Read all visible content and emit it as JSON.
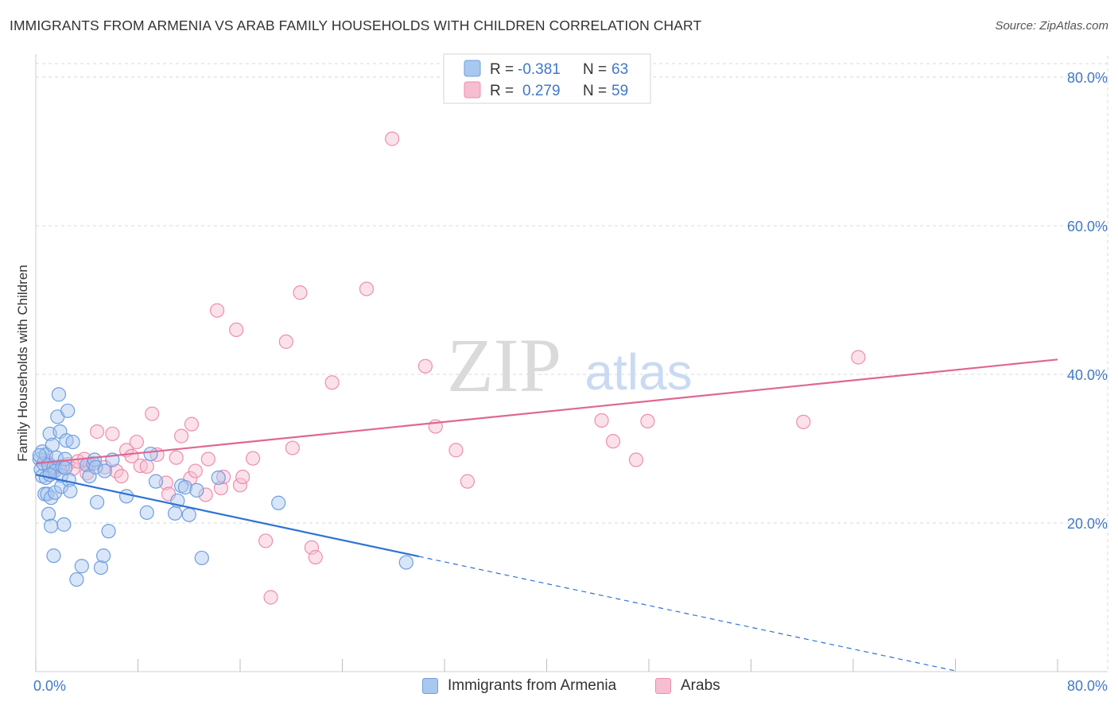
{
  "title": "IMMIGRANTS FROM ARMENIA VS ARAB FAMILY HOUSEHOLDS WITH CHILDREN CORRELATION CHART",
  "source": "Source: ZipAtlas.com",
  "watermark": {
    "zip": "ZIP",
    "atlas": "atlas"
  },
  "colors": {
    "blue_fill": "#a9c8f0",
    "blue_stroke": "#6f9ee0",
    "blue_line": "#2f72d3",
    "pink_fill": "#f7bdd0",
    "pink_stroke": "#ec8fae",
    "pink_line": "#e06793",
    "axis_label": "#3f78c9",
    "grid": "#d9d9d9"
  },
  "legend_top": {
    "rows": [
      {
        "r_label": "R =",
        "r_value": "-0.381",
        "n_label": "N =",
        "n_value": "63"
      },
      {
        "r_label": "R =",
        "r_value": "0.279",
        "n_label": "N =",
        "n_value": "59"
      }
    ]
  },
  "legend_bottom": [
    "Immigrants from Armenia",
    "Arabs"
  ],
  "chart_data": {
    "type": "scatter",
    "title": "IMMIGRANTS FROM ARMENIA VS ARAB FAMILY HOUSEHOLDS WITH CHILDREN CORRELATION CHART",
    "xlabel": "",
    "ylabel": "Family Households with Children",
    "xlim": [
      0,
      80
    ],
    "ylim": [
      0,
      80
    ],
    "x_tick_labels": [
      "0.0%",
      "80.0%"
    ],
    "y_tick_labels": [
      "20.0%",
      "40.0%",
      "60.0%",
      "80.0%"
    ],
    "y_ticks": [
      20,
      40,
      60,
      80
    ],
    "grid": true,
    "series": [
      {
        "name": "Immigrants from Armenia",
        "r": -0.381,
        "n": 63,
        "trend": {
          "x0": 0,
          "y0": 26.5,
          "x1": 30,
          "y1": 15.5,
          "dash_to_x": 72
        },
        "points": [
          [
            0.3,
            28.6
          ],
          [
            0.4,
            27.2
          ],
          [
            0.5,
            29.6
          ],
          [
            0.5,
            26.3
          ],
          [
            0.6,
            28.0
          ],
          [
            0.7,
            23.9
          ],
          [
            0.8,
            29.2
          ],
          [
            0.8,
            26.1
          ],
          [
            0.9,
            23.9
          ],
          [
            1.0,
            27.8
          ],
          [
            1.0,
            21.2
          ],
          [
            1.1,
            32.0
          ],
          [
            1.2,
            23.4
          ],
          [
            1.2,
            19.6
          ],
          [
            1.3,
            30.5
          ],
          [
            1.4,
            27.5
          ],
          [
            1.4,
            15.6
          ],
          [
            1.5,
            27.0
          ],
          [
            1.5,
            24.1
          ],
          [
            1.6,
            28.8
          ],
          [
            1.7,
            34.3
          ],
          [
            1.8,
            37.3
          ],
          [
            1.9,
            32.3
          ],
          [
            2.0,
            24.9
          ],
          [
            2.0,
            26.4
          ],
          [
            2.1,
            27.6
          ],
          [
            2.2,
            19.8
          ],
          [
            2.3,
            28.6
          ],
          [
            2.4,
            31.1
          ],
          [
            2.5,
            35.1
          ],
          [
            2.6,
            25.8
          ],
          [
            2.7,
            24.3
          ],
          [
            2.9,
            30.9
          ],
          [
            3.2,
            12.4
          ],
          [
            3.6,
            14.2
          ],
          [
            4.0,
            27.8
          ],
          [
            4.2,
            26.3
          ],
          [
            4.5,
            28.0
          ],
          [
            4.6,
            28.5
          ],
          [
            4.7,
            27.5
          ],
          [
            4.8,
            22.8
          ],
          [
            5.1,
            14.0
          ],
          [
            5.3,
            15.6
          ],
          [
            5.4,
            27.0
          ],
          [
            5.7,
            18.9
          ],
          [
            6.0,
            28.5
          ],
          [
            7.1,
            23.6
          ],
          [
            8.7,
            21.4
          ],
          [
            9.0,
            29.3
          ],
          [
            9.4,
            25.6
          ],
          [
            10.9,
            21.3
          ],
          [
            11.1,
            23.0
          ],
          [
            11.4,
            25.0
          ],
          [
            11.7,
            24.8
          ],
          [
            12.0,
            21.1
          ],
          [
            12.6,
            24.4
          ],
          [
            13.0,
            15.3
          ],
          [
            14.3,
            26.1
          ],
          [
            19.0,
            22.7
          ],
          [
            29.0,
            14.7
          ],
          [
            0.3,
            29.1
          ],
          [
            1.1,
            26.5
          ],
          [
            2.3,
            27.4
          ]
        ]
      },
      {
        "name": "Arabs",
        "r": 0.279,
        "n": 59,
        "trend": {
          "x0": 0,
          "y0": 28.0,
          "x1": 80,
          "y1": 42.0
        },
        "points": [
          [
            0.7,
            28.5
          ],
          [
            1.0,
            28.0
          ],
          [
            1.3,
            26.8
          ],
          [
            1.8,
            27.6
          ],
          [
            2.5,
            27.9
          ],
          [
            2.9,
            27.3
          ],
          [
            3.3,
            28.3
          ],
          [
            4.0,
            26.7
          ],
          [
            4.2,
            27.9
          ],
          [
            4.8,
            32.3
          ],
          [
            5.4,
            27.5
          ],
          [
            6.0,
            32.0
          ],
          [
            6.3,
            27.0
          ],
          [
            6.7,
            26.3
          ],
          [
            7.1,
            29.8
          ],
          [
            7.5,
            29.0
          ],
          [
            7.9,
            30.9
          ],
          [
            8.2,
            27.7
          ],
          [
            8.7,
            27.6
          ],
          [
            9.1,
            34.7
          ],
          [
            9.5,
            29.2
          ],
          [
            10.2,
            25.4
          ],
          [
            10.4,
            23.9
          ],
          [
            11.0,
            28.8
          ],
          [
            11.4,
            31.7
          ],
          [
            12.1,
            26.0
          ],
          [
            12.2,
            33.3
          ],
          [
            12.5,
            27.0
          ],
          [
            13.3,
            23.8
          ],
          [
            13.5,
            28.6
          ],
          [
            14.2,
            48.6
          ],
          [
            14.5,
            24.7
          ],
          [
            14.7,
            26.2
          ],
          [
            15.7,
            46.0
          ],
          [
            16.0,
            25.1
          ],
          [
            16.2,
            26.2
          ],
          [
            17.0,
            28.7
          ],
          [
            18.0,
            17.6
          ],
          [
            18.4,
            10.0
          ],
          [
            19.6,
            44.4
          ],
          [
            20.1,
            30.1
          ],
          [
            20.7,
            51.0
          ],
          [
            21.6,
            16.7
          ],
          [
            21.9,
            15.4
          ],
          [
            23.2,
            38.9
          ],
          [
            25.9,
            51.5
          ],
          [
            27.9,
            71.7
          ],
          [
            30.5,
            41.1
          ],
          [
            31.3,
            33.0
          ],
          [
            32.9,
            29.8
          ],
          [
            33.8,
            25.6
          ],
          [
            44.3,
            33.8
          ],
          [
            45.2,
            31.0
          ],
          [
            47.0,
            28.5
          ],
          [
            47.9,
            33.7
          ],
          [
            60.1,
            33.6
          ],
          [
            64.4,
            42.3
          ],
          [
            1.2,
            27.2
          ],
          [
            3.8,
            28.6
          ]
        ]
      }
    ]
  }
}
